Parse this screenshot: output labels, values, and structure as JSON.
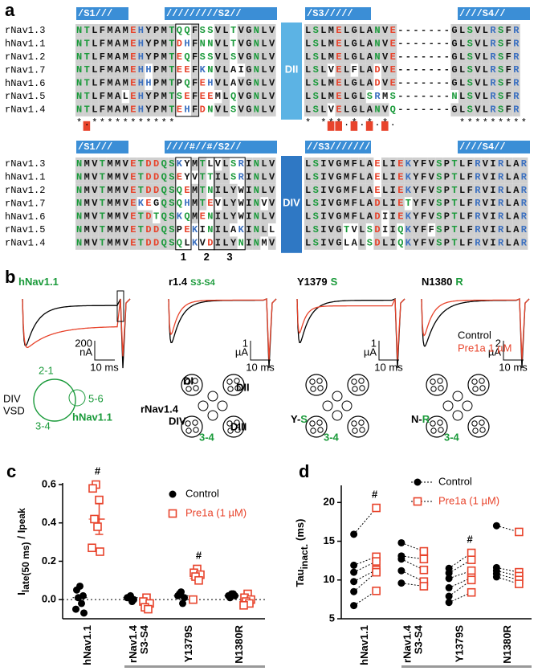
{
  "panel_a": {
    "label": "a",
    "blocks": [
      {
        "domain": "DII",
        "headers": [
          "/S1///",
          "/////////S2//",
          "/S3/////",
          "////S4//"
        ],
        "rows": [
          {
            "name": "rNav1.3",
            "left": "NTLFMAMEHYPMTQQFSSVLTVGNLV",
            "right": "LSLMELGLANVE-------GLSVLRSFR"
          },
          {
            "name": "hNav1.1",
            "left": "NTLFMAMEHYPMTDHFNNVLTVGNLV",
            "right": "LSLMELGLANVE-------GLSVLRSFR"
          },
          {
            "name": "rNav1.2",
            "left": "NTLFMAMEHYPMTEQFSSVLSVGNLV",
            "right": "LSLMELGLANVE-------GLSVLRSFR"
          },
          {
            "name": "rNav1.7",
            "left": "NTLFMAMEHHPMTEEFKNVLAIGNLV",
            "right": "LSLVELFLADVE-------GLSVLRSFR"
          },
          {
            "name": "hNav1.6",
            "left": "NTLFMAMEHHPMTPQFEHVLAVGNLV",
            "right": "LSLMELGLADVE-------GLSVLRSFR"
          },
          {
            "name": "rNav1.5",
            "left": "NTLFMALEHYPMTSEFEEMLQVGNLV",
            "right": "LSLMELGLSRMS-------NLSVLRSFR"
          },
          {
            "name": "rNav1.4",
            "left": "NTLFMAMEHYPMTEHFDNVLSVGNLV",
            "right": "LSLVELGLANVQ-------GLSVLRSFR"
          }
        ],
        "conservation": {
          "left": "*.***********",
          "right": "* ***.*.*.*.        *********"
        }
      },
      {
        "domain": "DIV",
        "headers": [
          "/S1///",
          "////#//#/S2//",
          "//S3//////////",
          "////S4//"
        ],
        "rows": [
          {
            "name": "rNav1.3",
            "left": "NMVTMMVETDDQSKYMTLVLSRINLV",
            "right": "LSIVGMFLAELIEKYFVSPTLFRVIRLAR"
          },
          {
            "name": "hNav1.1",
            "left": "NMVTMMVETDDQSEYVTTILSRINLV",
            "right": "LSIVGMFLAELIEKYFVSPTLFRVIRLAR"
          },
          {
            "name": "rNav1.2",
            "left": "NMVTMMVETDDQSQEMTNILYWINLV",
            "right": "LSIVGMFLAELIEKYFVSPTLFRVIRLAR"
          },
          {
            "name": "rNav1.7",
            "left": "NMVTMMVEKEGQSQHMTEVLYWINVV",
            "right": "LSIVGMFLADLIETYFVSPTLFRVIRLAR"
          },
          {
            "name": "hNav1.6",
            "left": "NMVTMMVETDTQSKQMENILYWINLV",
            "right": "LSIVGMFLADIIEKYFVSPTLFRVIRLAR"
          },
          {
            "name": "rNav1.5",
            "left": "NMVTMMVETDDQSPEKINILAKINLL",
            "right": "LSIVGTVLSDIIQKYFFSPTLFRVIRLAR"
          },
          {
            "name": "rNav1.4",
            "left": "NMVTMMVETDDQSQLKVDILYNINMV",
            "right": "LSIVGLALSDLIQKYFVSPTLFRVIRLAR"
          }
        ],
        "boxes": [
          "1",
          "2",
          "3"
        ]
      }
    ]
  },
  "panel_b": {
    "label": "b",
    "titles": [
      {
        "highlight": "hNav1.1"
      },
      {
        "name": "r1.4",
        "highlight": "S3-S4"
      },
      {
        "name": "Y1379",
        "highlight": "S"
      },
      {
        "name": "N1380",
        "highlight": "R"
      }
    ],
    "scale_bars": [
      {
        "amp": "200",
        "unit": "nA",
        "time": "10 ms"
      },
      {
        "amp": "1",
        "unit": "µA",
        "time": "10 ms"
      },
      {
        "amp": "1",
        "unit": "µA",
        "time": "10 ms"
      },
      {
        "amp": "2",
        "unit": "µA",
        "time": "10 ms"
      }
    ],
    "legend": [
      "Control",
      "Pre1a 1 µM"
    ],
    "diagram_1": {
      "labels": [
        "DIV",
        "VSD"
      ],
      "loops": [
        "2-1",
        "5-6",
        "3-4"
      ],
      "name": "hNav1.1"
    },
    "diagram_2": {
      "name": "rNav1.4",
      "domains": [
        "DI",
        "DII",
        "DIII",
        "DIV"
      ],
      "loop": "3-4"
    },
    "diagram_3": {
      "wt": "Y-",
      "mut": "S",
      "loop": "3-4"
    },
    "diagram_4": {
      "wt": "N-",
      "mut": "R",
      "loop": "3-4"
    }
  },
  "chart_data": [
    {
      "type": "dot",
      "panel_label": "c",
      "y_label": [
        "I",
        "late(50 ms)",
        "/ I",
        "peak"
      ],
      "categories": [
        "hNav1.1",
        "rNav1.4",
        "Y1379S",
        "N1380R"
      ],
      "category_sublabels": [
        null,
        "S3-S4",
        null,
        null
      ],
      "ylim": [
        -0.1,
        0.6
      ],
      "yticks": [
        {
          "value": 0,
          "label": "0.0"
        },
        0.2,
        0.4,
        0.6
      ],
      "zero_line": true,
      "mean_lines": true,
      "series": [
        {
          "name": "Control",
          "color": "#000000",
          "marker": "circle",
          "values": [
            [
              0.07,
              0.05,
              0.02,
              0.01,
              -0.02,
              -0.05,
              -0.07
            ],
            [
              0.02,
              0.01,
              0,
              0.01,
              -0.01
            ],
            [
              0.04,
              0.02,
              0.01,
              0.03,
              -0.02
            ],
            [
              0.03,
              0.02,
              0.02,
              0.01,
              0.03
            ]
          ],
          "means": [
            0.01,
            0.01,
            0.02,
            0.02
          ]
        },
        {
          "name": "Pre1a (1 µM)",
          "color": "#e8432b",
          "marker": "square",
          "values": [
            [
              0.6,
              0.58,
              0.52,
              0.42,
              0.38,
              0.27,
              0.25
            ],
            [
              0.01,
              -0.01,
              -0.02,
              -0.04,
              -0.05
            ],
            [
              0.16,
              0.14,
              0.13,
              0.12,
              0.1,
              0
            ],
            [
              0.03,
              0.01,
              0,
              -0.01,
              -0.02,
              -0.03
            ]
          ],
          "means": [
            0.42,
            -0.02,
            0.11,
            0
          ],
          "errors": [
            0.08,
            null,
            null,
            null
          ]
        }
      ],
      "annotations": [
        {
          "text": "#",
          "category": "hNav1.1"
        },
        {
          "text": "#",
          "category": "Y1379S"
        }
      ]
    },
    {
      "type": "dot",
      "panel_label": "d",
      "y_label": [
        "Tau",
        "inact.",
        "(ms)"
      ],
      "categories": [
        "hNav1.1",
        "rNav1.4",
        "Y1379S",
        "N1380R"
      ],
      "category_sublabels": [
        null,
        "S3-S4",
        null,
        null
      ],
      "ylim": [
        5,
        22
      ],
      "yticks": [
        5,
        10,
        15,
        20
      ],
      "paired_lines": true,
      "series": [
        {
          "name": "Control",
          "color": "#000000",
          "marker": "circle",
          "values": [
            [
              15.9,
              11.9,
              11,
              9.8,
              8.5,
              6.7
            ],
            [
              14.8,
              13.1,
              12.7,
              11.2,
              9.6
            ],
            [
              11.5,
              10.9,
              10.2,
              9,
              7.9,
              7.1
            ],
            [
              17,
              11.6,
              11.2,
              10.8,
              10.4
            ]
          ]
        },
        {
          "name": "Pre1a (1 µM)",
          "color": "#e8432b",
          "marker": "square",
          "values": [
            [
              19.3,
              13,
              12.4,
              11.3,
              11,
              8.6
            ],
            [
              13.7,
              12.7,
              11.3,
              9.8,
              9.2
            ],
            [
              13.5,
              12.6,
              11.2,
              10.3,
              10,
              8.4
            ],
            [
              16.2,
              11,
              10.5,
              10,
              9.5
            ]
          ]
        }
      ],
      "annotations": [
        {
          "text": "#",
          "category": "hNav1.1"
        },
        {
          "text": "#",
          "category": "Y1379S"
        }
      ]
    }
  ]
}
